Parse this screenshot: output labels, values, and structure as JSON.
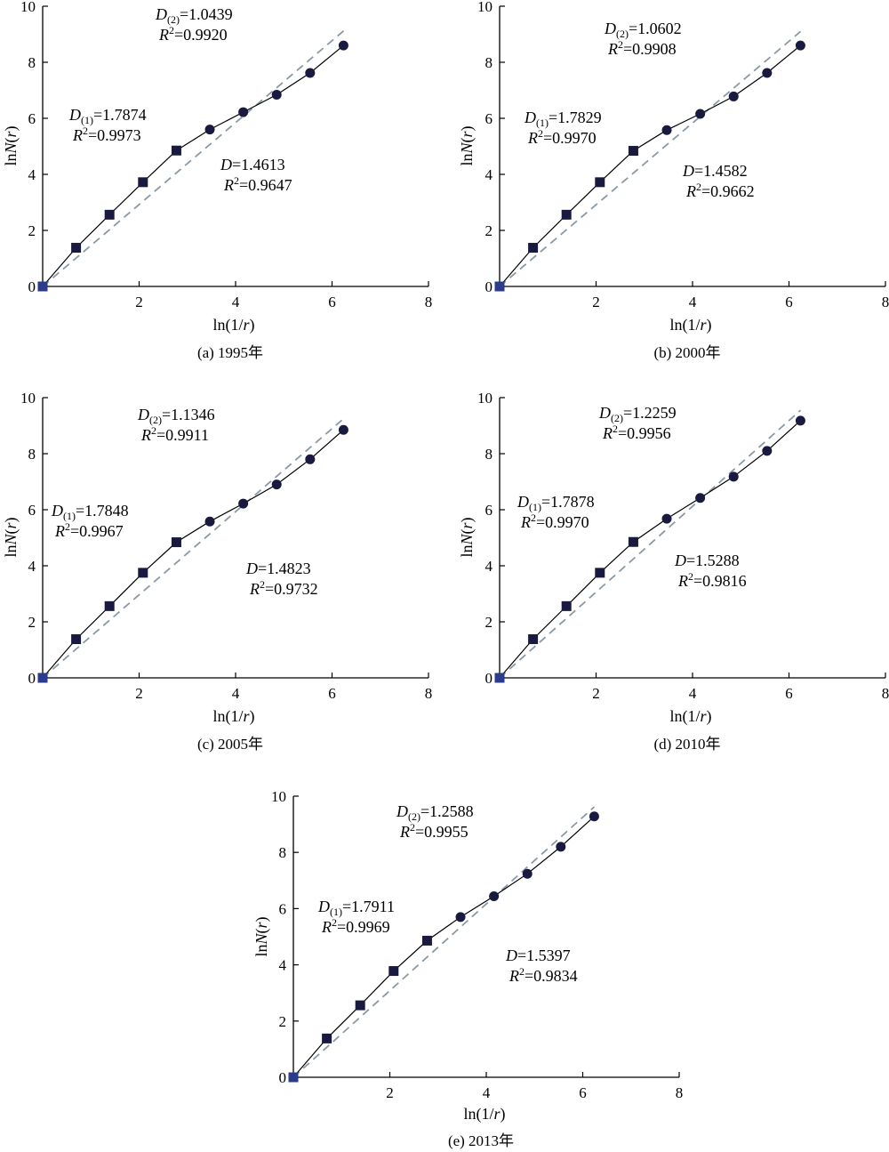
{
  "chart_data": [
    {
      "type": "line",
      "caption": "(a) 1995年",
      "xlabel": "ln(1/r)",
      "ylabel": "lnN(r)",
      "xlim": [
        0,
        8
      ],
      "ylim": [
        0,
        10
      ],
      "xticks": [
        "2",
        "4",
        "6",
        "8"
      ],
      "yticks": [
        "0",
        "2",
        "4",
        "6",
        "8",
        "10"
      ],
      "x": [
        0,
        0.693,
        1.386,
        2.079,
        2.773,
        3.466,
        4.159,
        4.852,
        5.545,
        6.238
      ],
      "y": [
        0,
        1.38,
        2.56,
        3.72,
        4.85,
        5.6,
        6.22,
        6.84,
        7.62,
        8.6
      ],
      "markers": [
        "square",
        "square",
        "square",
        "square",
        "square",
        "circle",
        "circle",
        "circle",
        "circle",
        "circle"
      ],
      "fit_line": {
        "style": "dashed",
        "x": [
          0,
          6.24
        ],
        "y": [
          0,
          9.12
        ]
      },
      "annotations": {
        "d2": {
          "sym": "D",
          "sub": "(2)",
          "val": "=1.0439",
          "r2sym": "R",
          "r2sup": "2",
          "r2val": "=0.9920"
        },
        "d1": {
          "sym": "D",
          "sub": "(1)",
          "val": "=1.7874",
          "r2sym": "R",
          "r2sup": "2",
          "r2val": "=0.9973"
        },
        "d": {
          "sym": "D",
          "val": "=1.4613",
          "r2sym": "R",
          "r2sup": "2",
          "r2val": "=0.9647"
        }
      }
    },
    {
      "type": "line",
      "caption": "(b) 2000年",
      "xlabel": "ln(1/r)",
      "ylabel": "lnN(r)",
      "xlim": [
        0,
        8
      ],
      "ylim": [
        0,
        10
      ],
      "xticks": [
        "2",
        "4",
        "6",
        "8"
      ],
      "yticks": [
        "0",
        "2",
        "4",
        "6",
        "8",
        "10"
      ],
      "x": [
        0,
        0.693,
        1.386,
        2.079,
        2.773,
        3.466,
        4.159,
        4.852,
        5.545,
        6.238
      ],
      "y": [
        0,
        1.38,
        2.56,
        3.72,
        4.84,
        5.58,
        6.16,
        6.78,
        7.62,
        8.6
      ],
      "markers": [
        "square",
        "square",
        "square",
        "square",
        "square",
        "circle",
        "circle",
        "circle",
        "circle",
        "circle"
      ],
      "fit_line": {
        "style": "dashed",
        "x": [
          0,
          6.24
        ],
        "y": [
          0,
          9.1
        ]
      },
      "annotations": {
        "d2": {
          "sym": "D",
          "sub": "(2)",
          "val": "=1.0602",
          "r2sym": "R",
          "r2sup": "2",
          "r2val": "=0.9908"
        },
        "d1": {
          "sym": "D",
          "sub": "(1)",
          "val": "=1.7829",
          "r2sym": "R",
          "r2sup": "2",
          "r2val": "=0.9970"
        },
        "d": {
          "sym": "D",
          "val": "=1.4582",
          "r2sym": "R",
          "r2sup": "2",
          "r2val": "=0.9662"
        }
      }
    },
    {
      "type": "line",
      "caption": "(c) 2005年",
      "xlabel": "ln(1/r)",
      "ylabel": "lnN(r)",
      "xlim": [
        0,
        8
      ],
      "ylim": [
        0,
        10
      ],
      "xticks": [
        "2",
        "4",
        "6",
        "8"
      ],
      "yticks": [
        "0",
        "2",
        "4",
        "6",
        "8",
        "10"
      ],
      "x": [
        0,
        0.693,
        1.386,
        2.079,
        2.773,
        3.466,
        4.159,
        4.852,
        5.545,
        6.238
      ],
      "y": [
        0,
        1.38,
        2.56,
        3.75,
        4.84,
        5.58,
        6.22,
        6.9,
        7.8,
        8.85
      ],
      "markers": [
        "square",
        "square",
        "square",
        "square",
        "square",
        "circle",
        "circle",
        "circle",
        "circle",
        "circle"
      ],
      "fit_line": {
        "style": "dashed",
        "x": [
          0,
          6.24
        ],
        "y": [
          0,
          9.25
        ]
      },
      "annotations": {
        "d2": {
          "sym": "D",
          "sub": "(2)",
          "val": "=1.1346",
          "r2sym": "R",
          "r2sup": "2",
          "r2val": "=0.9911"
        },
        "d1": {
          "sym": "D",
          "sub": "(1)",
          "val": "=1.7848",
          "r2sym": "R",
          "r2sup": "2",
          "r2val": "=0.9967"
        },
        "d": {
          "sym": "D",
          "val": "=1.4823",
          "r2sym": "R",
          "r2sup": "2",
          "r2val": "=0.9732"
        }
      }
    },
    {
      "type": "line",
      "caption": "(d) 2010年",
      "xlabel": "ln(1/r)",
      "ylabel": "lnN(r)",
      "xlim": [
        0,
        8
      ],
      "ylim": [
        0,
        10
      ],
      "xticks": [
        "2",
        "4",
        "6",
        "8"
      ],
      "yticks": [
        "0",
        "2",
        "4",
        "6",
        "8",
        "10"
      ],
      "x": [
        0,
        0.693,
        1.386,
        2.079,
        2.773,
        3.466,
        4.159,
        4.852,
        5.545,
        6.238
      ],
      "y": [
        0,
        1.38,
        2.56,
        3.75,
        4.85,
        5.68,
        6.42,
        7.18,
        8.1,
        9.18
      ],
      "markers": [
        "square",
        "square",
        "square",
        "square",
        "square",
        "circle",
        "circle",
        "circle",
        "circle",
        "circle"
      ],
      "fit_line": {
        "style": "dashed",
        "x": [
          0,
          6.24
        ],
        "y": [
          0,
          9.55
        ]
      },
      "annotations": {
        "d2": {
          "sym": "D",
          "sub": "(2)",
          "val": "=1.2259",
          "r2sym": "R",
          "r2sup": "2",
          "r2val": "=0.9956"
        },
        "d1": {
          "sym": "D",
          "sub": "(1)",
          "val": "=1.7878",
          "r2sym": "R",
          "r2sup": "2",
          "r2val": "=0.9970"
        },
        "d": {
          "sym": "D",
          "val": "=1.5288",
          "r2sym": "R",
          "r2sup": "2",
          "r2val": "=0.9816"
        }
      }
    },
    {
      "type": "line",
      "caption": "(e) 2013年",
      "xlabel": "ln(1/r)",
      "ylabel": "lnN(r)",
      "xlim": [
        0,
        8
      ],
      "ylim": [
        0,
        10
      ],
      "xticks": [
        "2",
        "4",
        "6",
        "8"
      ],
      "yticks": [
        "0",
        "2",
        "4",
        "6",
        "8",
        "10"
      ],
      "x": [
        0,
        0.693,
        1.386,
        2.079,
        2.773,
        3.466,
        4.159,
        4.852,
        5.545,
        6.238
      ],
      "y": [
        0,
        1.38,
        2.56,
        3.78,
        4.86,
        5.7,
        6.44,
        7.24,
        8.2,
        9.28
      ],
      "markers": [
        "square",
        "square",
        "square",
        "square",
        "square",
        "circle",
        "circle",
        "circle",
        "circle",
        "circle"
      ],
      "fit_line": {
        "style": "dashed",
        "x": [
          0,
          6.24
        ],
        "y": [
          0,
          9.62
        ]
      },
      "annotations": {
        "d2": {
          "sym": "D",
          "sub": "(2)",
          "val": "=1.2588",
          "r2sym": "R",
          "r2sup": "2",
          "r2val": "=0.9955"
        },
        "d1": {
          "sym": "D",
          "sub": "(1)",
          "val": "=1.7911",
          "r2sym": "R",
          "r2sup": "2",
          "r2val": "=0.9969"
        },
        "d": {
          "sym": "D",
          "val": "=1.5397",
          "r2sym": "R",
          "r2sup": "2",
          "r2val": "=0.9834"
        }
      }
    }
  ],
  "colors": {
    "axis": "#000000",
    "data_line": "#000000",
    "marker_fill": "#1a1a40",
    "first_marker_fill": "#2c3b8c",
    "fit_line": "#8a9aa4"
  }
}
